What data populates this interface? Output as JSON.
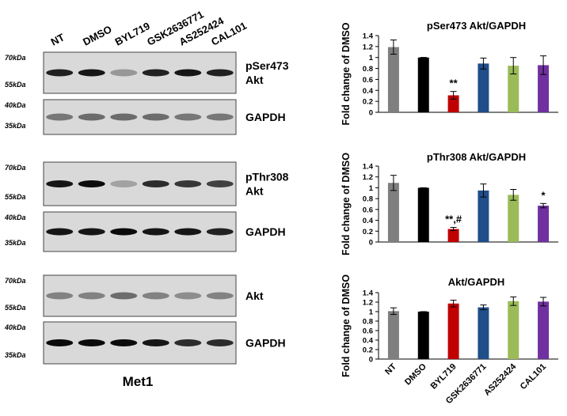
{
  "blot": {
    "lanes": [
      "NT",
      "DMSO",
      "BYL719",
      "GSK2636771",
      "AS252424",
      "CAL101"
    ],
    "panels": [
      {
        "label": [
          "pSer473",
          "Akt"
        ],
        "markers": [
          "70kDa",
          "55kDa"
        ]
      },
      {
        "label": [
          "GAPDH"
        ],
        "markers": [
          "40kDa",
          "35kDa"
        ]
      },
      {
        "label": [
          "pThr308",
          "Akt"
        ],
        "markers": [
          "70kDa",
          "55kDa"
        ]
      },
      {
        "label": [
          "GAPDH"
        ],
        "markers": [
          "40kDa",
          "35kDa"
        ]
      },
      {
        "label": [
          "Akt"
        ],
        "markers": [
          "70kDa",
          "55kDa"
        ]
      },
      {
        "label": [
          "GAPDH"
        ],
        "markers": [
          "40kDa",
          "35kDa"
        ]
      }
    ],
    "caption": "Met1"
  },
  "chart_data": [
    {
      "type": "bar",
      "title": "pSer473 Akt/GAPDH",
      "y_label": "Fold change of DMSO",
      "values": [
        1.19,
        1.0,
        0.31,
        0.89,
        0.85,
        0.86
      ],
      "errors": [
        0.13,
        0,
        0.07,
        0.1,
        0.15,
        0.17
      ],
      "annotations": [
        null,
        null,
        "**",
        null,
        null,
        null
      ],
      "colors": [
        "#7f7f7f",
        "#000000",
        "#c00000",
        "#1f4e89",
        "#9bbb59",
        "#7030a0"
      ],
      "ylim": [
        0,
        1.4
      ],
      "yticks": [
        0,
        0.2,
        0.4,
        0.6,
        0.8,
        1,
        1.2,
        1.4
      ]
    },
    {
      "type": "bar",
      "title": "pThr308 Akt/GAPDH",
      "y_label": "Fold change of DMSO",
      "values": [
        1.09,
        1.0,
        0.24,
        0.95,
        0.87,
        0.67
      ],
      "errors": [
        0.14,
        0,
        0.03,
        0.12,
        0.1,
        0.04
      ],
      "annotations": [
        null,
        null,
        "**,#",
        null,
        null,
        "*"
      ],
      "colors": [
        "#7f7f7f",
        "#000000",
        "#c00000",
        "#1f4e89",
        "#9bbb59",
        "#7030a0"
      ],
      "ylim": [
        0,
        1.4
      ],
      "yticks": [
        0,
        0.2,
        0.4,
        0.6,
        0.8,
        1,
        1.2,
        1.4
      ]
    },
    {
      "type": "bar",
      "title": "Akt/GAPDH",
      "y_label": "Fold change of DMSO",
      "categories": [
        "NT",
        "DMSO",
        "BYL719",
        "GSK2636771",
        "AS252424",
        "CAL101"
      ],
      "values": [
        1.01,
        1.0,
        1.17,
        1.09,
        1.22,
        1.21
      ],
      "errors": [
        0.07,
        0,
        0.07,
        0.05,
        0.09,
        0.09
      ],
      "colors": [
        "#7f7f7f",
        "#000000",
        "#c00000",
        "#1f4e89",
        "#9bbb59",
        "#7030a0"
      ],
      "ylim": [
        0,
        1.4
      ],
      "yticks": [
        0,
        0.2,
        0.4,
        0.6,
        0.8,
        1,
        1.2,
        1.4
      ]
    }
  ]
}
